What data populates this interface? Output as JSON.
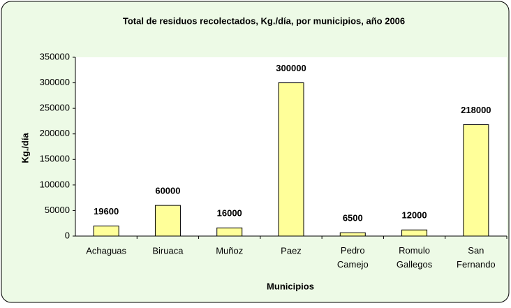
{
  "chart_data": {
    "type": "bar",
    "title": "Total de residuos recolectados, Kg./día, por municipios, año 2006",
    "x_label": "Municipios",
    "y_label": "Kg./día",
    "categories": [
      "Achaguas",
      "Biruaca",
      "Muñoz",
      "Paez",
      "Pedro Camejo",
      "Romulo Gallegos",
      "San Fernando"
    ],
    "values": [
      19600,
      60000,
      16000,
      300000,
      6500,
      12000,
      218000
    ],
    "color": "#ffff99",
    "ylim": [
      0,
      350000
    ],
    "yticks": [
      0,
      50000,
      100000,
      150000,
      200000,
      250000,
      300000,
      350000
    ],
    "grid": false
  }
}
